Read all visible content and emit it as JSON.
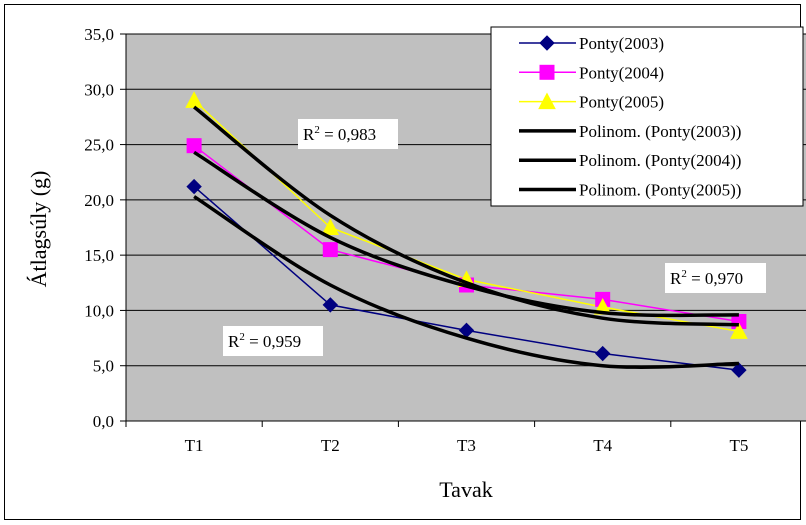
{
  "chart_data": {
    "type": "line",
    "xlabel": "Tavak",
    "ylabel": "Átlagsúly (g)",
    "categories": [
      "T1",
      "T2",
      "T3",
      "T4",
      "T5"
    ],
    "ylim": [
      0,
      35
    ],
    "yticks": [
      "0,0",
      "5,0",
      "10,0",
      "15,0",
      "20,0",
      "25,0",
      "30,0",
      "35,0"
    ],
    "grid": true,
    "plot_background": "#C0C0C0",
    "legend_position": "top-right",
    "series": [
      {
        "name": "Ponty(2003)",
        "values": [
          21.2,
          10.5,
          8.2,
          6.1,
          4.6
        ],
        "color": "#000080",
        "marker": "diamond"
      },
      {
        "name": "Ponty(2004)",
        "values": [
          24.9,
          15.5,
          12.3,
          11.0,
          9.0
        ],
        "color": "#FF00FF",
        "marker": "square"
      },
      {
        "name": "Ponty(2005)",
        "values": [
          29.0,
          17.5,
          12.8,
          10.3,
          8.1
        ],
        "color": "#FFFF00",
        "marker": "triangle"
      }
    ],
    "trendlines": [
      {
        "name": "Polinom. (Ponty(2003))",
        "values": [
          20.3,
          12.3,
          7.5,
          5.0,
          5.2
        ],
        "color": "#000000"
      },
      {
        "name": "Polinom. (Ponty(2004))",
        "values": [
          24.3,
          16.6,
          12.2,
          9.8,
          9.6
        ],
        "color": "#000000"
      },
      {
        "name": "Polinom. (Ponty(2005))",
        "values": [
          28.4,
          18.6,
          12.5,
          9.3,
          8.7
        ],
        "color": "#000000"
      }
    ],
    "annotations": [
      {
        "label": "R",
        "sup": "2",
        "text": " = 0,983"
      },
      {
        "label": "R",
        "sup": "2",
        "text": " = 0,970"
      },
      {
        "label": "R",
        "sup": "2",
        "text": " = 0,959"
      }
    ]
  }
}
